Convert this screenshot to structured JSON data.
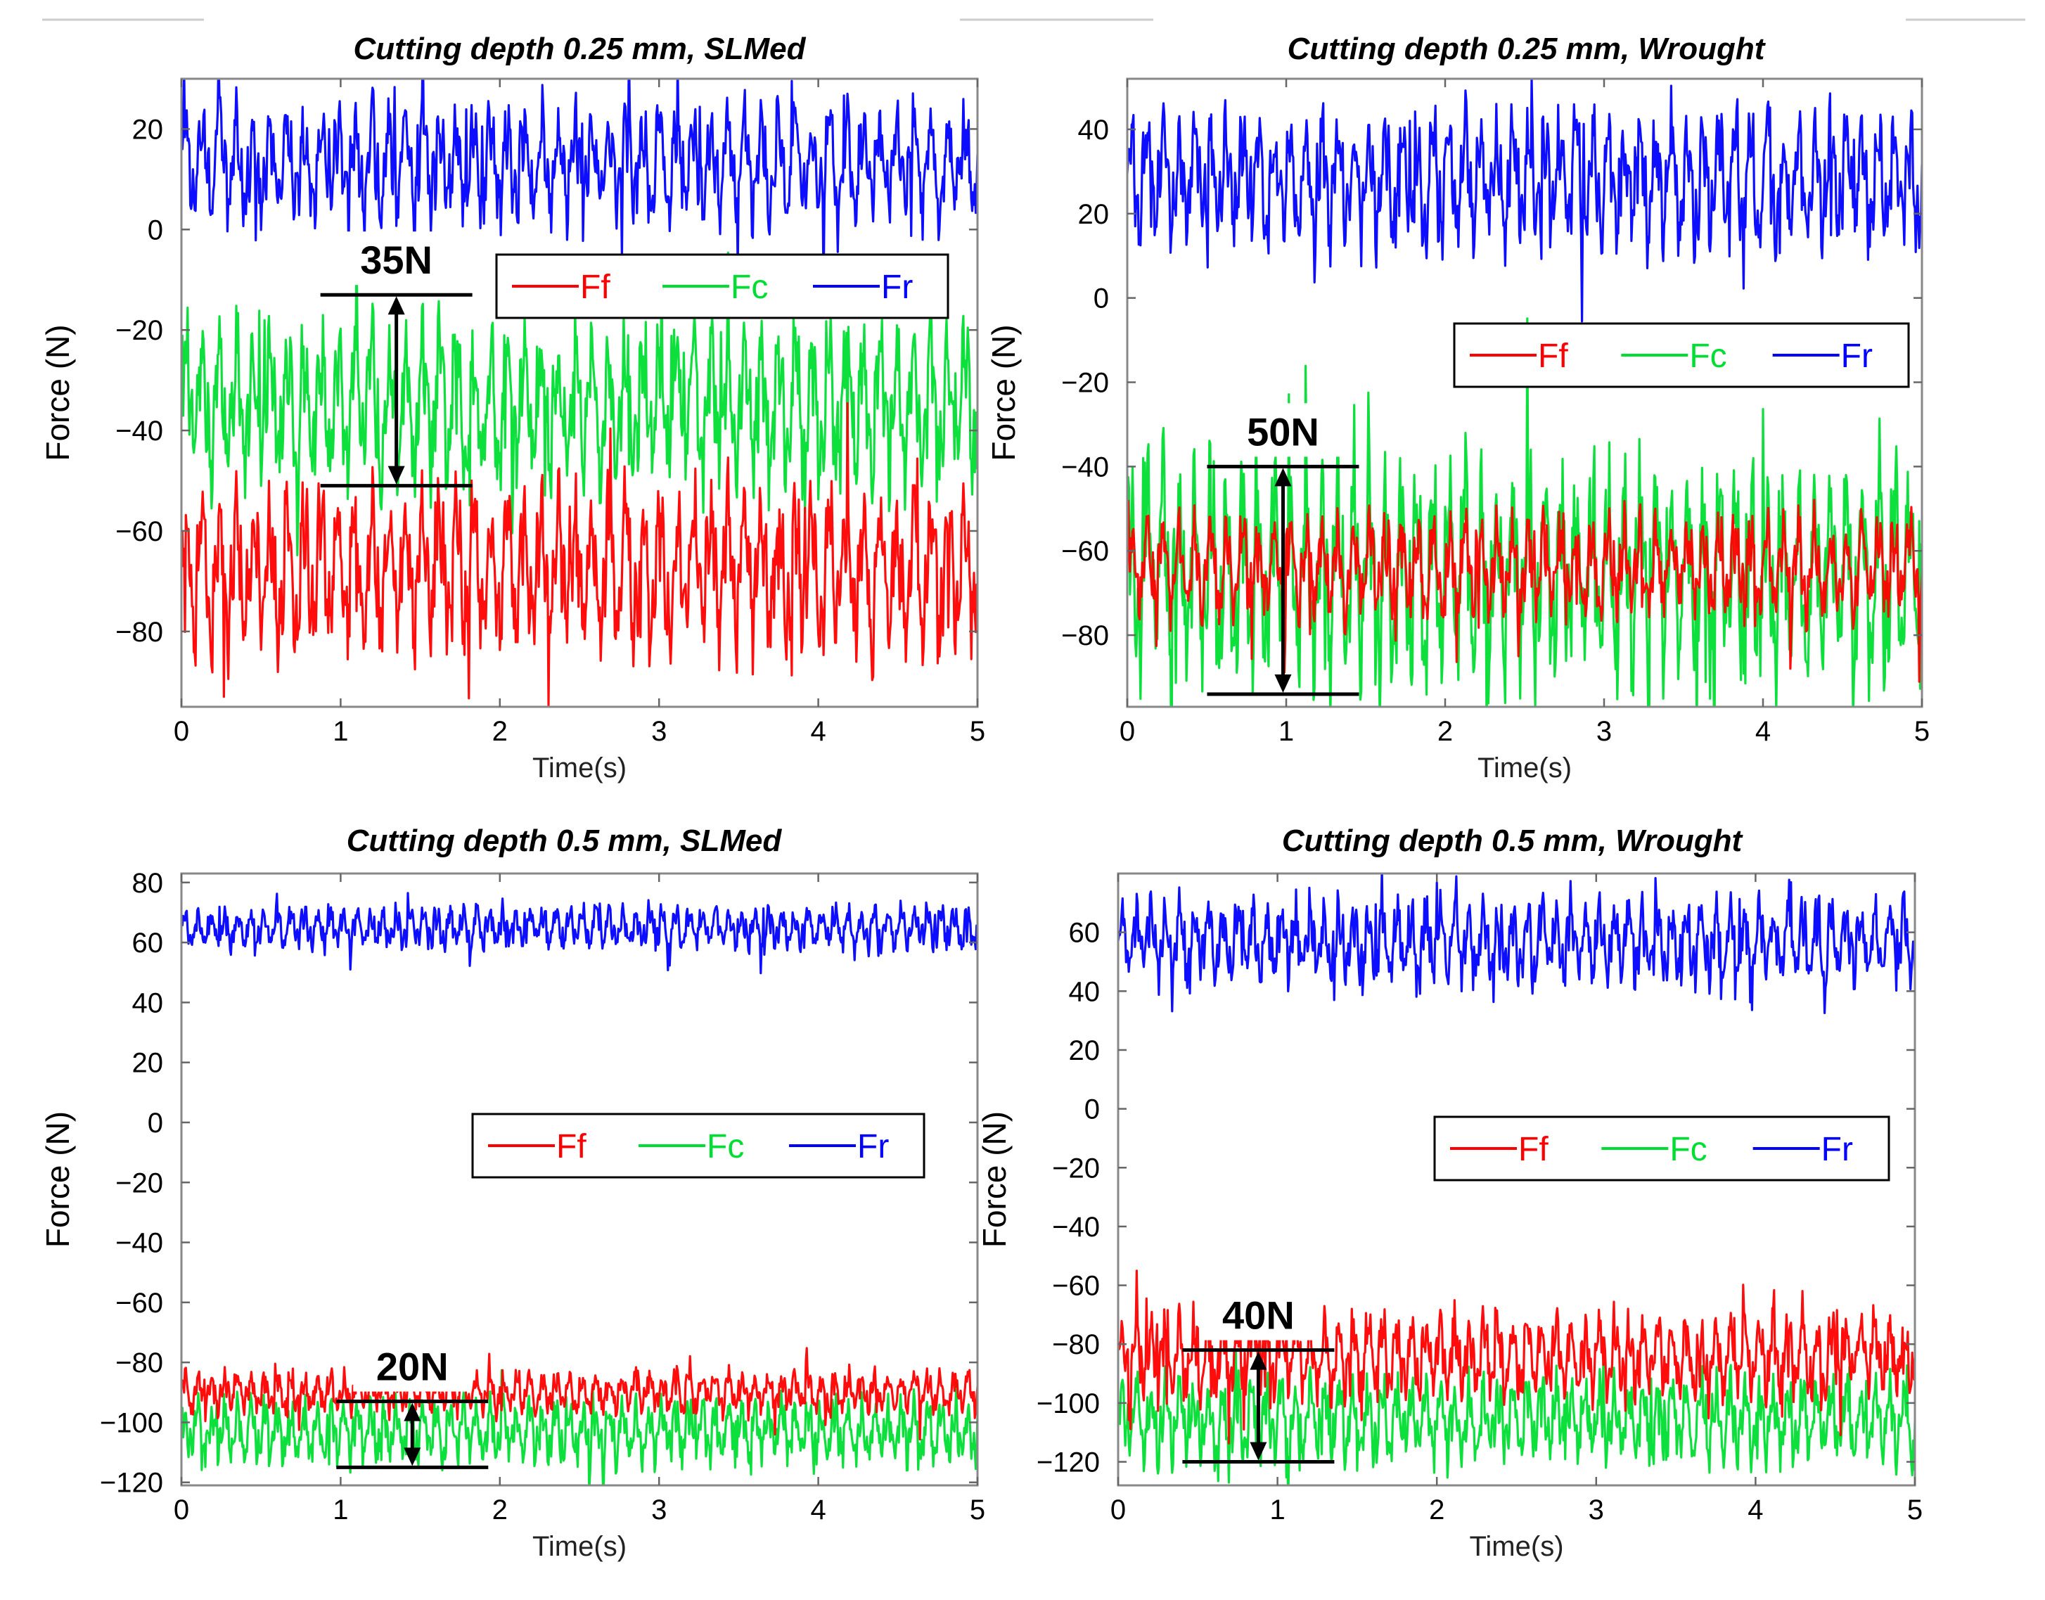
{
  "chart_data": [
    {
      "type": "line",
      "title": "Cutting depth 0.25 mm, SLMed",
      "xlabel": "Time(s)",
      "ylabel": "Force (N)",
      "xlim": [
        0,
        5
      ],
      "ylim": [
        -95,
        30
      ],
      "xticks": [
        0,
        1,
        2,
        3,
        4,
        5
      ],
      "yticks": [
        20,
        0,
        -20,
        -40,
        -60,
        -80
      ],
      "cycles": 47,
      "series": [
        {
          "name": "Ff",
          "color": "#ff0000",
          "mean": -68,
          "amplitude": 14
        },
        {
          "name": "Fc",
          "color": "#00dd33",
          "mean": -35,
          "amplitude": 14
        },
        {
          "name": "Fr",
          "color": "#0000ff",
          "mean": 13,
          "amplitude": 10
        }
      ],
      "annotation": {
        "label": "35N",
        "y_top": -13,
        "y_bottom": -51,
        "x": 1.35
      },
      "legend": {
        "position": "upper-right",
        "entries": [
          "Ff",
          "Fc",
          "Fr"
        ]
      }
    },
    {
      "type": "line",
      "title": "Cutting depth 0.25 mm, Wrought",
      "xlabel": "Time(s)",
      "ylabel": "Force (N)",
      "xlim": [
        0,
        5
      ],
      "ylim": [
        -97,
        52
      ],
      "xticks": [
        0,
        1,
        2,
        3,
        4,
        5
      ],
      "yticks": [
        40,
        20,
        0,
        -20,
        -40,
        -60,
        -80
      ],
      "cycles": 50,
      "series": [
        {
          "name": "Ff",
          "color": "#ff0000",
          "mean": -64,
          "amplitude": 10
        },
        {
          "name": "Fc",
          "color": "#00dd33",
          "mean": -65,
          "amplitude": 22
        },
        {
          "name": "Fr",
          "color": "#0000ff",
          "mean": 28,
          "amplitude": 14
        }
      ],
      "annotation": {
        "label": "50N",
        "y_top": -40,
        "y_bottom": -94,
        "x": 0.98
      },
      "legend": {
        "position": "upper-right",
        "entries": [
          "Ff",
          "Fc",
          "Fr"
        ]
      }
    },
    {
      "type": "line",
      "title": "Cutting depth 0.5 mm, SLMed",
      "xlabel": "Time(s)",
      "ylabel": "Force (N)",
      "xlim": [
        0,
        5
      ],
      "ylim": [
        -121,
        83
      ],
      "xticks": [
        0,
        1,
        2,
        3,
        4,
        5
      ],
      "yticks": [
        80,
        60,
        40,
        20,
        0,
        -20,
        -40,
        -60,
        -80,
        -100,
        -120
      ],
      "cycles": 60,
      "series": [
        {
          "name": "Ff",
          "color": "#ff0000",
          "mean": -90,
          "amplitude": 6
        },
        {
          "name": "Fc",
          "color": "#00dd33",
          "mean": -103,
          "amplitude": 9
        },
        {
          "name": "Fr",
          "color": "#0000ff",
          "mean": 65,
          "amplitude": 6
        }
      ],
      "annotation": {
        "label": "20N",
        "y_top": -93,
        "y_bottom": -115,
        "x": 1.45
      },
      "legend": {
        "position": "center-right",
        "entries": [
          "Ff",
          "Fc",
          "Fr"
        ]
      }
    },
    {
      "type": "line",
      "title": "Cutting depth 0.5 mm, Wrought",
      "xlabel": "Time(s)",
      "ylabel": "Force (N)",
      "xlim": [
        0,
        5
      ],
      "ylim": [
        -128,
        80
      ],
      "xticks": [
        0,
        1,
        2,
        3,
        4,
        5
      ],
      "yticks": [
        60,
        40,
        20,
        0,
        -20,
        -40,
        -60,
        -80,
        -100,
        -120
      ],
      "cycles": 55,
      "series": [
        {
          "name": "Ff",
          "color": "#ff0000",
          "mean": -84,
          "amplitude": 12
        },
        {
          "name": "Fc",
          "color": "#00dd33",
          "mean": -106,
          "amplitude": 12
        },
        {
          "name": "Fr",
          "color": "#0000ff",
          "mean": 57,
          "amplitude": 12
        }
      ],
      "annotation": {
        "label": "40N",
        "y_top": -82,
        "y_bottom": -120,
        "x": 0.88
      },
      "legend": {
        "position": "center-right",
        "entries": [
          "Ff",
          "Fc",
          "Fr"
        ]
      }
    }
  ]
}
